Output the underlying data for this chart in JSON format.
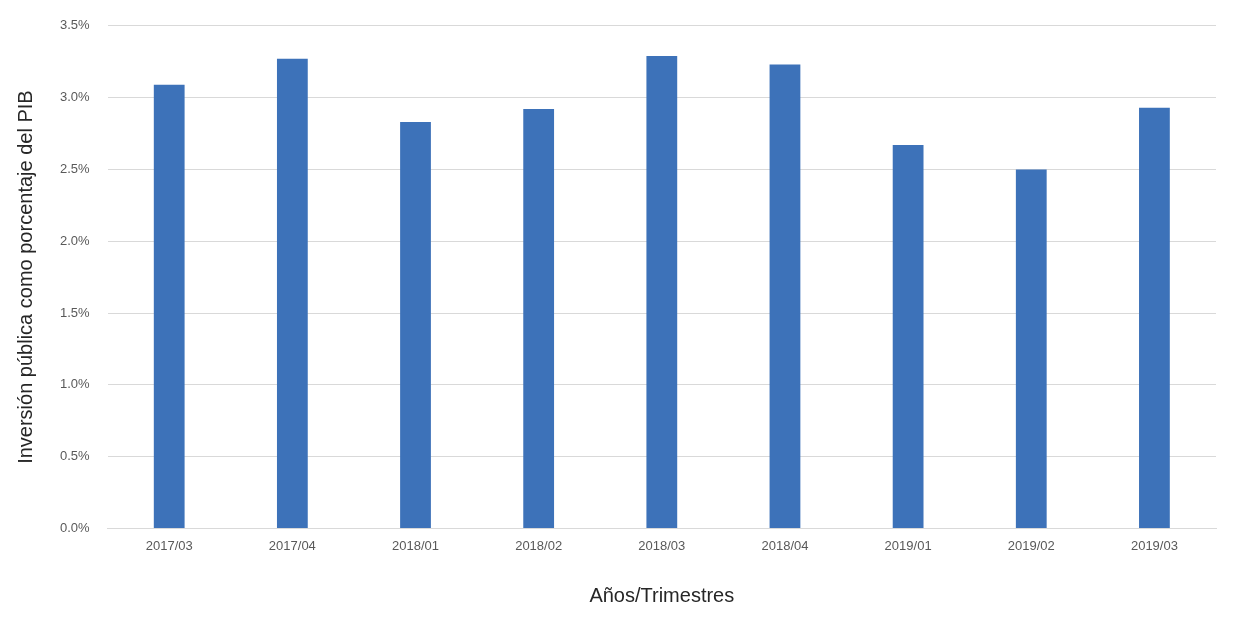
{
  "chart_data": {
    "type": "bar",
    "xlabel": "Años/Trimestres",
    "ylabel": "Inversión pública como porcentaje del PIB",
    "categories": [
      "2017/03",
      "2017/04",
      "2018/01",
      "2018/02",
      "2018/03",
      "2018/04",
      "2019/01",
      "2019/02",
      "2019/03"
    ],
    "values": [
      3.09,
      3.27,
      2.83,
      2.92,
      3.29,
      3.23,
      2.67,
      2.5,
      2.93
    ],
    "color": "#3d72b9",
    "ylim": [
      0,
      3.5
    ],
    "yticks": [
      {
        "value": 0,
        "label": "0.0%"
      },
      {
        "value": 0.5,
        "label": "0.5%"
      },
      {
        "value": 1,
        "label": "1.0%"
      },
      {
        "value": 1.5,
        "label": "1.5%"
      },
      {
        "value": 2,
        "label": "2.0%"
      },
      {
        "value": 2.5,
        "label": "2.5%"
      },
      {
        "value": 3,
        "label": "3.0%"
      },
      {
        "value": 3.5,
        "label": "3.5%"
      }
    ],
    "grid": "y"
  }
}
